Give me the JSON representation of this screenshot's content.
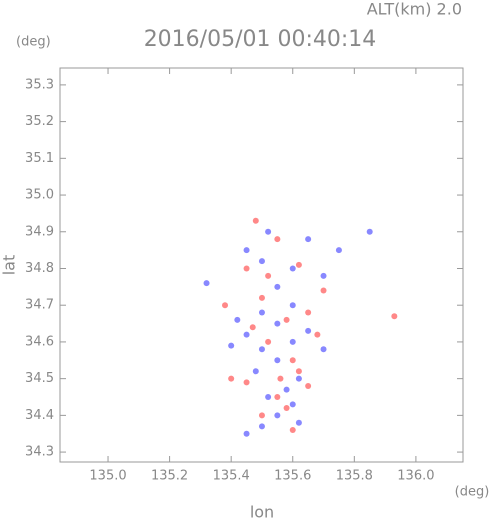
{
  "chart_data": {
    "type": "scatter",
    "title": "2016/05/01 00:40:14",
    "subtitle": "ALT(km) 2.0",
    "y_unit": "(deg)",
    "x_unit": "(deg)",
    "xlabel": "lon",
    "ylabel": "lat",
    "xlim": [
      134.844,
      136.153
    ],
    "ylim": [
      34.273,
      35.346
    ],
    "xticks": [
      {
        "value": 135,
        "label": "135.0"
      },
      135.2,
      135.4,
      135.6,
      135.8,
      {
        "value": 136,
        "label": "136.0"
      }
    ],
    "yticks": [
      34.3,
      34.4,
      34.5,
      34.6,
      34.7,
      34.8,
      34.9,
      {
        "value": 35,
        "label": "35.0"
      },
      35.1,
      35.2,
      35.3
    ],
    "series": [
      {
        "color": "#6a6aff",
        "x": [
          135.45,
          135.5,
          135.55,
          135.6,
          135.52,
          135.62,
          135.48,
          135.55,
          135.5,
          135.6,
          135.45,
          135.55,
          135.65,
          135.5,
          135.6,
          135.42,
          135.55,
          135.7,
          135.6,
          135.5,
          135.45,
          135.75,
          135.85,
          135.32,
          135.65,
          135.58,
          135.7,
          135.4,
          135.52,
          135.62
        ],
        "y": [
          34.35,
          34.37,
          34.4,
          34.43,
          34.45,
          34.5,
          34.52,
          34.55,
          34.58,
          34.6,
          34.62,
          34.65,
          34.63,
          34.68,
          34.7,
          34.66,
          34.75,
          34.78,
          34.8,
          34.82,
          34.85,
          34.85,
          34.9,
          34.76,
          34.88,
          34.47,
          34.58,
          34.59,
          34.9,
          34.38
        ]
      },
      {
        "color": "#ff6a6a",
        "x": [
          135.48,
          135.55,
          135.62,
          135.7,
          135.45,
          135.38,
          135.5,
          135.58,
          135.65,
          135.52,
          135.6,
          135.45,
          135.55,
          135.58,
          135.65,
          135.5,
          135.6,
          135.62,
          135.93,
          135.68,
          135.47,
          135.56,
          135.4,
          135.52
        ],
        "y": [
          34.93,
          34.88,
          34.81,
          34.74,
          34.8,
          34.7,
          34.72,
          34.66,
          34.68,
          34.6,
          34.55,
          34.49,
          34.45,
          34.42,
          34.48,
          34.4,
          34.36,
          34.52,
          34.67,
          34.62,
          34.64,
          34.5,
          34.5,
          34.78
        ]
      }
    ]
  }
}
